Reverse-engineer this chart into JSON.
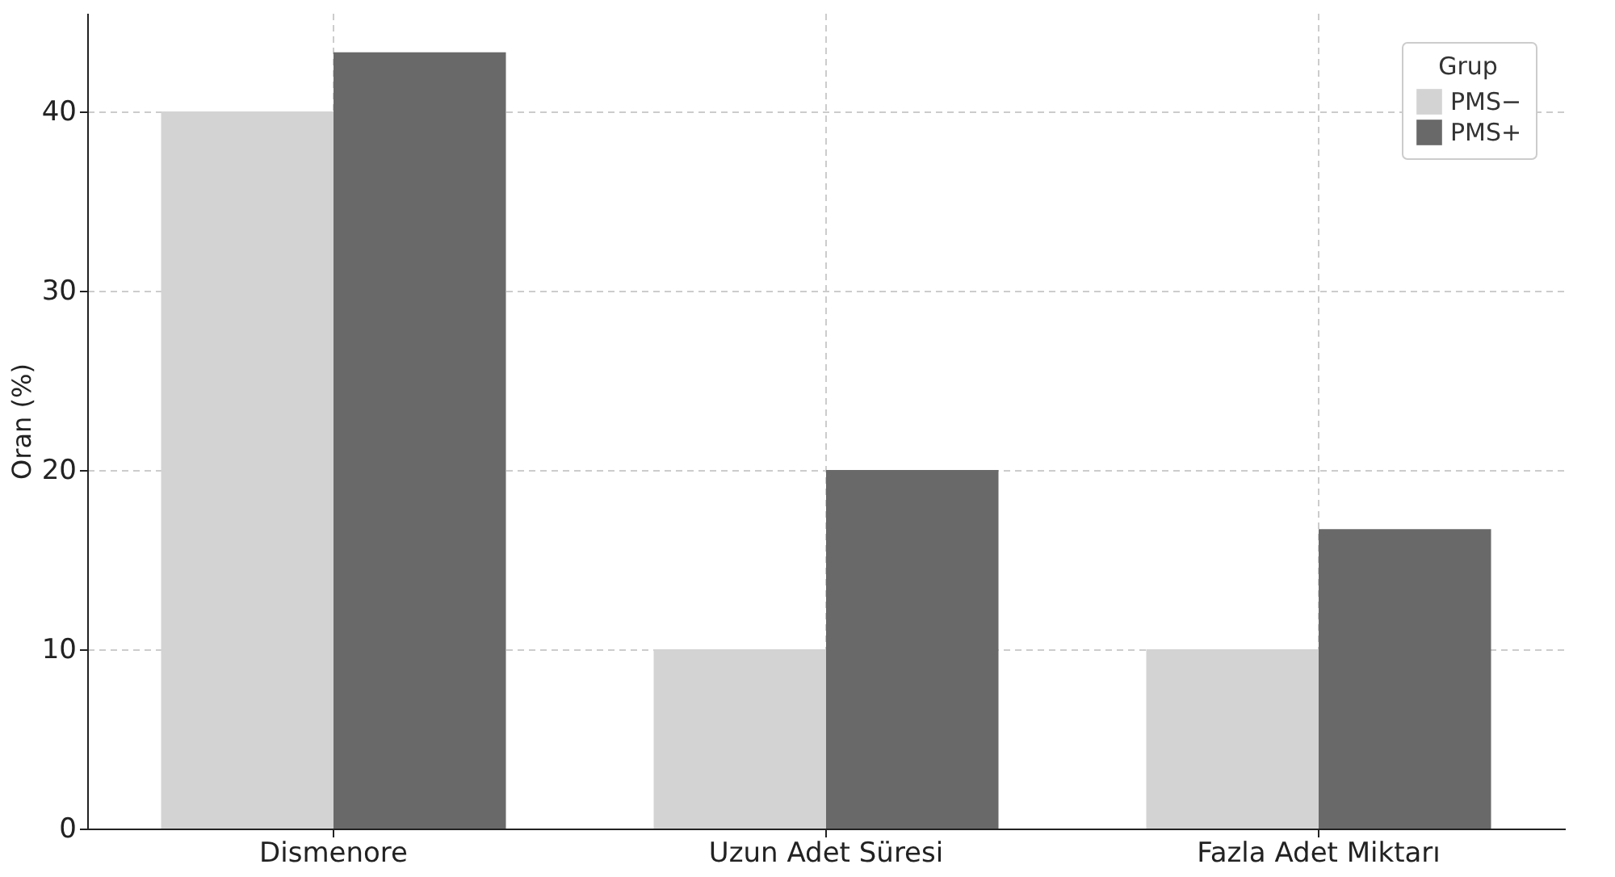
{
  "chart_data": {
    "type": "bar",
    "ylabel": "Oran (%)",
    "legend_title": "Grup",
    "categories": [
      "Dismenore",
      "Uzun Adet Süresi",
      "Fazla Adet Miktarı"
    ],
    "series": [
      {
        "name": "PMS−",
        "color": "#d3d3d3",
        "values": [
          40,
          10,
          10
        ]
      },
      {
        "name": "PMS+",
        "color": "#696969",
        "values": [
          43.3,
          20,
          16.7
        ]
      }
    ],
    "ylim": [
      0,
      45.5
    ],
    "yticks": [
      0,
      10,
      20,
      30,
      40
    ],
    "grid": true,
    "legend": "top right"
  }
}
